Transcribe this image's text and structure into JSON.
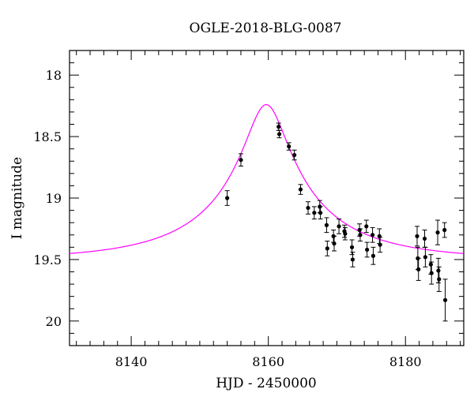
{
  "chart_data": {
    "type": "scatter",
    "title": "OGLE-2018-BLG-0087",
    "xlabel": "HJD - 2450000",
    "ylabel": "I magnitude",
    "xlim": [
      8131,
      8188.5
    ],
    "ylim": [
      20.2,
      17.8
    ],
    "y_inverted": true,
    "grid": false,
    "x_ticks": [
      8140,
      8160,
      8180
    ],
    "x_tick_labels": [
      "8140",
      "8160",
      "8180"
    ],
    "y_ticks": [
      18,
      18.5,
      19,
      19.5,
      20
    ],
    "y_tick_labels": [
      "18",
      "18.5",
      "19",
      "19.5",
      "20"
    ],
    "colors": {
      "model": "#ff00ff",
      "points": "#000000",
      "axes": "#000000"
    },
    "model": {
      "type": "line",
      "description": "fitted microlensing model",
      "t0": 8159.7,
      "peak_mag": 18.24,
      "baseline_mag": 19.5,
      "u0": 0.16,
      "tE": 18
    },
    "series": [
      {
        "type": "errorbar",
        "points": [
          {
            "x": 8154.0,
            "y": 19.0,
            "err": 0.06
          },
          {
            "x": 8156.0,
            "y": 18.69,
            "err": 0.05
          },
          {
            "x": 8161.5,
            "y": 18.42,
            "err": 0.03
          },
          {
            "x": 8161.6,
            "y": 18.48,
            "err": 0.03
          },
          {
            "x": 8163.0,
            "y": 18.58,
            "err": 0.03
          },
          {
            "x": 8163.8,
            "y": 18.65,
            "err": 0.04
          },
          {
            "x": 8164.7,
            "y": 18.93,
            "err": 0.04
          },
          {
            "x": 8165.8,
            "y": 19.08,
            "err": 0.05
          },
          {
            "x": 8166.7,
            "y": 19.12,
            "err": 0.05
          },
          {
            "x": 8167.5,
            "y": 19.07,
            "err": 0.05
          },
          {
            "x": 8167.6,
            "y": 19.12,
            "err": 0.05
          },
          {
            "x": 8168.5,
            "y": 19.22,
            "err": 0.06
          },
          {
            "x": 8168.6,
            "y": 19.41,
            "err": 0.06
          },
          {
            "x": 8169.5,
            "y": 19.31,
            "err": 0.05
          },
          {
            "x": 8169.6,
            "y": 19.37,
            "err": 0.06
          },
          {
            "x": 8170.3,
            "y": 19.23,
            "err": 0.06
          },
          {
            "x": 8171.1,
            "y": 19.27,
            "err": 0.05
          },
          {
            "x": 8171.2,
            "y": 19.29,
            "err": 0.05
          },
          {
            "x": 8172.2,
            "y": 19.4,
            "err": 0.06
          },
          {
            "x": 8172.3,
            "y": 19.5,
            "err": 0.06
          },
          {
            "x": 8173.3,
            "y": 19.26,
            "err": 0.05
          },
          {
            "x": 8173.4,
            "y": 19.3,
            "err": 0.05
          },
          {
            "x": 8174.3,
            "y": 19.23,
            "err": 0.05
          },
          {
            "x": 8174.4,
            "y": 19.42,
            "err": 0.06
          },
          {
            "x": 8175.2,
            "y": 19.3,
            "err": 0.06
          },
          {
            "x": 8175.3,
            "y": 19.47,
            "err": 0.07
          },
          {
            "x": 8176.2,
            "y": 19.31,
            "err": 0.06
          },
          {
            "x": 8176.3,
            "y": 19.38,
            "err": 0.06
          },
          {
            "x": 8181.7,
            "y": 19.31,
            "err": 0.08
          },
          {
            "x": 8181.8,
            "y": 19.49,
            "err": 0.09
          },
          {
            "x": 8181.9,
            "y": 19.58,
            "err": 0.09
          },
          {
            "x": 8182.8,
            "y": 19.33,
            "err": 0.07
          },
          {
            "x": 8182.9,
            "y": 19.48,
            "err": 0.08
          },
          {
            "x": 8183.7,
            "y": 19.54,
            "err": 0.08
          },
          {
            "x": 8183.8,
            "y": 19.61,
            "err": 0.09
          },
          {
            "x": 8184.7,
            "y": 19.28,
            "err": 0.1
          },
          {
            "x": 8184.8,
            "y": 19.59,
            "err": 0.1
          },
          {
            "x": 8184.9,
            "y": 19.66,
            "err": 0.1
          },
          {
            "x": 8185.7,
            "y": 19.26,
            "err": 0.06
          },
          {
            "x": 8185.8,
            "y": 19.83,
            "err": 0.17
          }
        ]
      }
    ]
  }
}
